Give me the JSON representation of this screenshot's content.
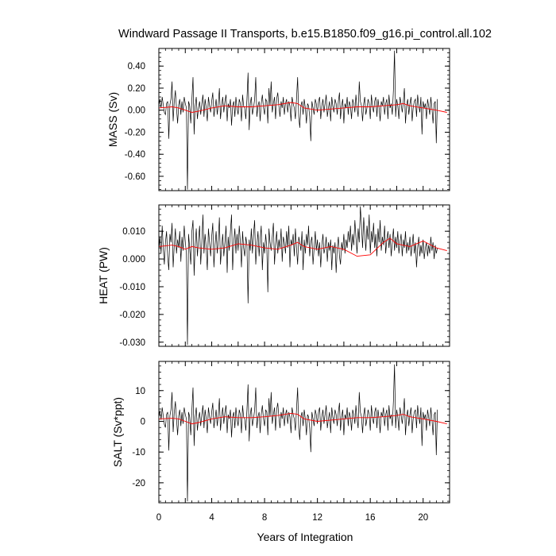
{
  "title": "Windward Passage II Transports, b.e15.B1850.f09_g16.pi_control.all.102",
  "xlabel": "Years of Integration",
  "x_ticks": [
    "0",
    "4",
    "8",
    "12",
    "16",
    "20"
  ],
  "colors": {
    "raw": "#000000",
    "smooth": "#ff0000"
  },
  "chart_data": [
    {
      "type": "line",
      "ylabel": "MASS (Sv)",
      "xlim": [
        0,
        22
      ],
      "ylim": [
        -0.73,
        0.56
      ],
      "y_ticks": [
        0.4,
        0.2,
        0.0,
        -0.2,
        -0.4,
        -0.6
      ],
      "y_tick_labels": [
        "0.40",
        "0.20",
        "0.00",
        "-0.20",
        "-0.40",
        "-0.60"
      ],
      "grid": false,
      "series": [
        {
          "role": "raw monthly",
          "x_start": 0,
          "x_step": 0.08333,
          "spiky": true,
          "y": [
            0.04,
            0.1,
            0.02,
            0.12,
            0.05,
            -0.02,
            -0.04,
            0.06,
            0.08,
            -0.26,
            0.05,
            0.1,
            0.26,
            -0.1,
            0.08,
            0.18,
            0.02,
            -0.12,
            0.05,
            0.1,
            -0.04,
            0.08,
            -0.02,
            0.12,
            0.06,
            0.02,
            -0.72,
            0.08,
            0.04,
            -0.12,
            0.1,
            0.3,
            -0.22,
            0.04,
            0.12,
            -0.08,
            0.02,
            0.08,
            -0.04,
            0.06,
            0.14,
            -0.06,
            0.1,
            0.02,
            -0.1,
            0.12,
            0.04,
            -0.02,
            0.08,
            0.16,
            -0.06,
            0.02,
            0.1,
            -0.04,
            0.06,
            0.2,
            -0.08,
            0.04,
            0.12,
            -0.02,
            0.08,
            0.14,
            -0.1,
            0.06,
            0.02,
            0.1,
            -0.14,
            0.04,
            0.08,
            -0.06,
            0.12,
            0.02,
            -0.04,
            0.1,
            0.06,
            -0.1,
            0.14,
            0.04,
            0.02,
            -0.08,
            0.1,
            0.34,
            -0.18,
            0.06,
            0.12,
            -0.04,
            0.02,
            0.1,
            0.3,
            -0.06,
            0.04,
            0.08,
            -0.1,
            0.06,
            0.14,
            0.02,
            -0.04,
            0.1,
            0.08,
            -0.12,
            0.2,
            0.04,
            0.26,
            -0.02,
            0.06,
            0.12,
            -0.08,
            0.1,
            0.16,
            0.04,
            -0.06,
            0.08,
            0.02,
            0.12,
            -0.04,
            0.06,
            0.1,
            -0.02,
            0.08,
            0.04,
            -0.1,
            0.12,
            0.06,
            0.02,
            -0.08,
            0.1,
            0.3,
            -0.06,
            -0.16,
            0.04,
            0.08,
            -0.04,
            0.1,
            0.02,
            -0.12,
            0.06,
            0.04,
            -0.06,
            -0.28,
            0.08,
            0.02,
            -0.04,
            0.1,
            0.06,
            -0.02,
            0.08,
            0.12,
            -0.08,
            0.04,
            0.1,
            -0.02,
            0.06,
            0.14,
            -0.06,
            0.02,
            0.08,
            -0.1,
            0.12,
            0.04,
            -0.02,
            0.1,
            0.06,
            -0.04,
            0.08,
            0.16,
            -0.08,
            0.04,
            0.1,
            -0.12,
            0.06,
            0.02,
            0.12,
            -0.04,
            0.08,
            0.04,
            -0.08,
            0.1,
            0.06,
            -0.02,
            0.14,
            0.02,
            -0.06,
            0.26,
            0.08,
            0.04,
            -0.1,
            0.06,
            0.12,
            -0.04,
            0.02,
            0.1,
            0.06,
            -0.08,
            0.14,
            0.04,
            -0.02,
            0.08,
            0.12,
            -0.06,
            0.1,
            0.02,
            -0.1,
            0.08,
            0.04,
            0.12,
            -0.04,
            0.06,
            0.1,
            -0.08,
            0.14,
            0.02,
            0.06,
            -0.04,
            0.18,
            0.54,
            -0.06,
            0.1,
            0.04,
            -0.08,
            0.12,
            0.06,
            -0.02,
            0.08,
            0.2,
            -0.12,
            0.04,
            0.1,
            -0.04,
            0.06,
            0.12,
            -0.1,
            0.02,
            0.08,
            0.1,
            -0.06,
            0.14,
            0.04,
            -0.02,
            0.12,
            -0.22,
            0.08,
            0.02,
            0.06,
            -0.08,
            0.1,
            0.04,
            -0.04,
            0.12,
            0.02,
            -0.12,
            0.06,
            0.08,
            -0.3,
            0.1
          ]
        },
        {
          "role": "smoothed",
          "x": [
            0.0,
            1.0,
            1.5,
            2.0,
            2.5,
            3.0,
            4.0,
            5.0,
            6.0,
            7.0,
            8.0,
            9.0,
            10.0,
            10.5,
            11.0,
            12.0,
            13.0,
            14.0,
            15.0,
            16.0,
            17.0,
            18.0,
            18.5,
            19.0,
            20.0,
            21.0,
            21.8
          ],
          "y": [
            0.02,
            0.03,
            0.02,
            0.0,
            -0.02,
            -0.01,
            0.02,
            0.04,
            0.03,
            0.03,
            0.04,
            0.05,
            0.07,
            0.06,
            0.02,
            0.0,
            0.01,
            0.02,
            0.03,
            0.03,
            0.04,
            0.05,
            0.06,
            0.04,
            0.02,
            0.0,
            -0.02
          ]
        }
      ]
    },
    {
      "type": "line",
      "ylabel": "HEAT (PW)",
      "xlim": [
        0,
        22
      ],
      "ylim": [
        -0.0315,
        0.0195
      ],
      "y_ticks": [
        0.01,
        0.0,
        -0.01,
        -0.02,
        -0.03
      ],
      "y_tick_labels": [
        "0.010",
        "0.000",
        "-0.010",
        "-0.020",
        "-0.030"
      ],
      "grid": false,
      "series": [
        {
          "role": "raw monthly",
          "x_start": 0,
          "x_step": 0.08333,
          "spiky": true,
          "y": [
            0.003,
            0.008,
            0.002,
            0.012,
            0.004,
            -0.002,
            0.006,
            0.01,
            0.001,
            -0.004,
            0.009,
            0.006,
            0.013,
            -0.003,
            0.005,
            0.011,
            0.002,
            0.007,
            0.004,
            0.01,
            -0.001,
            0.008,
            0.003,
            0.012,
            0.006,
            0.002,
            -0.031,
            0.009,
            0.004,
            -0.002,
            0.01,
            0.014,
            -0.006,
            0.005,
            0.011,
            0.001,
            0.007,
            0.012,
            -0.002,
            0.006,
            0.016,
            0.002,
            0.009,
            0.004,
            -0.004,
            0.011,
            0.006,
            0.001,
            0.008,
            0.013,
            -0.003,
            0.005,
            0.01,
            0.002,
            0.007,
            0.015,
            -0.002,
            0.004,
            0.009,
            0.001,
            0.006,
            0.012,
            -0.005,
            0.008,
            0.003,
            0.01,
            0.016,
            -0.004,
            0.006,
            0.011,
            0.002,
            0.009,
            0.003,
            0.012,
            0.006,
            -0.003,
            0.01,
            0.004,
            0.001,
            0.008,
            0.005,
            -0.016,
            0.007,
            0.003,
            0.011,
            0.002,
            0.009,
            0.014,
            -0.002,
            0.005,
            0.01,
            0.001,
            0.007,
            0.012,
            -0.004,
            0.006,
            0.002,
            0.009,
            0.004,
            -0.012,
            0.011,
            0.006,
            0.003,
            0.008,
            0.013,
            -0.002,
            0.005,
            0.01,
            0.002,
            0.007,
            0.004,
            0.011,
            -0.001,
            0.008,
            0.006,
            0.002,
            0.01,
            0.004,
            0.012,
            -0.003,
            0.007,
            0.005,
            0.009,
            0.001,
            0.011,
            0.004,
            -0.002,
            0.008,
            0.006,
            0.003,
            0.01,
            -0.004,
            0.007,
            0.002,
            0.009,
            0.005,
            0.012,
            0.001,
            0.006,
            0.008,
            -0.002,
            0.004,
            0.01,
            0.003,
            0.007,
            0.001,
            0.006,
            -0.003,
            0.005,
            0.009,
            0.002,
            0.004,
            0.008,
            -0.001,
            0.006,
            0.003,
            0.007,
            -0.004,
            0.005,
            0.002,
            0.006,
            -0.005,
            0.004,
            0.008,
            0.001,
            -0.002,
            0.006,
            0.003,
            0.009,
            0.002,
            0.007,
            0.004,
            0.01,
            0.006,
            0.012,
            0.003,
            0.009,
            0.005,
            0.014,
            0.008,
            0.002,
            0.011,
            0.006,
            0.019,
            0.012,
            0.004,
            0.015,
            0.009,
            0.003,
            0.012,
            0.007,
            0.016,
            0.002,
            0.01,
            0.006,
            0.013,
            0.004,
            0.009,
            0.001,
            0.011,
            0.006,
            0.014,
            0.003,
            0.008,
            0.005,
            0.012,
            0.002,
            0.007,
            0.01,
            0.004,
            0.009,
            0.001,
            0.006,
            0.011,
            0.003,
            0.008,
            0.004,
            0.01,
            0.002,
            0.006,
            0.009,
            0.001,
            0.007,
            0.004,
            0.01,
            0.002,
            0.006,
            0.003,
            0.008,
            0.001,
            0.005,
            0.009,
            0.002,
            0.006,
            -0.003,
            0.004,
            0.008,
            0.001,
            0.005,
            0.002,
            0.007,
            0.0,
            0.004,
            0.006,
            0.001,
            0.005,
            0.002,
            0.008,
            0.003,
            0.006,
            0.0,
            0.005,
            0.002,
            0.004
          ]
        },
        {
          "role": "smoothed",
          "x": [
            0.0,
            1.0,
            1.5,
            2.0,
            2.5,
            3.0,
            4.0,
            5.0,
            6.0,
            7.0,
            8.0,
            9.0,
            10.0,
            10.5,
            11.0,
            12.0,
            13.0,
            14.0,
            15.0,
            16.0,
            17.0,
            17.5,
            18.0,
            19.0,
            20.0,
            21.0,
            21.8
          ],
          "y": [
            0.0045,
            0.005,
            0.0045,
            0.0035,
            0.0045,
            0.004,
            0.0035,
            0.004,
            0.0055,
            0.005,
            0.004,
            0.0035,
            0.005,
            0.006,
            0.0045,
            0.0035,
            0.0045,
            0.0035,
            0.001,
            0.0015,
            0.006,
            0.0075,
            0.0055,
            0.0045,
            0.0065,
            0.004,
            0.003
          ]
        }
      ]
    },
    {
      "type": "line",
      "ylabel": "SALT (Sv*ppt)",
      "xlim": [
        0,
        22
      ],
      "ylim": [
        -26.5,
        19.5
      ],
      "y_ticks": [
        10,
        0,
        -10,
        -20
      ],
      "y_tick_labels": [
        "10",
        "0",
        "-10",
        "-20"
      ],
      "grid": false,
      "series": [
        {
          "role": "raw monthly",
          "x_start": 0,
          "x_step": 0.08333,
          "spiky": true,
          "y": [
            1.5,
            3.5,
            0.5,
            4.5,
            1.8,
            -1.0,
            -2.0,
            2.2,
            3.0,
            -9.5,
            1.8,
            3.8,
            9.5,
            -3.5,
            3.0,
            6.5,
            0.8,
            -4.5,
            1.8,
            3.8,
            -1.5,
            3.0,
            -0.8,
            4.5,
            2.2,
            0.8,
            -26.0,
            3.0,
            1.5,
            -4.5,
            3.8,
            11.0,
            -8.0,
            1.5,
            4.5,
            -3.0,
            0.8,
            3.0,
            -1.5,
            2.2,
            5.2,
            -2.2,
            3.8,
            0.8,
            -3.8,
            4.5,
            1.5,
            -0.8,
            3.0,
            6.0,
            -2.2,
            0.8,
            3.8,
            -1.5,
            2.2,
            7.5,
            -3.0,
            1.5,
            4.5,
            -0.8,
            3.0,
            5.2,
            -3.8,
            2.2,
            0.8,
            3.8,
            -5.2,
            1.5,
            3.0,
            -2.2,
            4.5,
            0.8,
            -1.5,
            3.8,
            2.2,
            -3.8,
            5.2,
            1.5,
            0.8,
            -3.0,
            3.8,
            12.0,
            -6.5,
            2.2,
            4.5,
            -1.5,
            0.8,
            3.8,
            11.0,
            -2.2,
            1.5,
            3.0,
            -3.8,
            2.2,
            5.2,
            0.8,
            -1.5,
            3.8,
            3.0,
            -4.5,
            7.5,
            1.5,
            9.5,
            -0.8,
            2.2,
            4.5,
            -3.0,
            3.8,
            6.0,
            1.5,
            -2.2,
            3.0,
            0.8,
            4.5,
            -1.5,
            2.2,
            3.8,
            -0.8,
            3.0,
            1.5,
            -3.8,
            4.5,
            2.2,
            0.8,
            -3.0,
            3.8,
            11.0,
            -2.2,
            -6.0,
            1.5,
            3.0,
            -1.5,
            3.8,
            0.8,
            -4.5,
            2.2,
            1.5,
            -2.2,
            -10.0,
            3.0,
            0.8,
            -1.5,
            3.8,
            2.2,
            -0.8,
            3.0,
            4.5,
            -3.0,
            1.5,
            3.8,
            -0.8,
            2.2,
            5.2,
            -2.2,
            0.8,
            3.0,
            -3.8,
            4.5,
            1.5,
            -0.8,
            3.8,
            2.2,
            -1.5,
            3.0,
            6.0,
            -3.0,
            1.5,
            3.8,
            -4.5,
            2.2,
            0.8,
            4.5,
            -1.5,
            3.0,
            1.5,
            -3.0,
            3.8,
            2.2,
            -0.8,
            5.2,
            0.8,
            -2.2,
            9.5,
            3.0,
            1.5,
            -3.8,
            2.2,
            4.5,
            -1.5,
            0.8,
            3.8,
            2.2,
            -3.0,
            5.2,
            1.5,
            -0.8,
            3.0,
            4.5,
            -2.2,
            3.8,
            0.8,
            -3.8,
            3.0,
            1.5,
            4.5,
            -1.5,
            2.2,
            3.8,
            -3.0,
            5.2,
            0.8,
            2.2,
            -1.5,
            6.5,
            18.5,
            -2.2,
            3.8,
            1.5,
            -3.0,
            4.5,
            2.2,
            -0.8,
            3.0,
            7.5,
            -4.5,
            1.5,
            3.8,
            -1.5,
            2.2,
            4.5,
            -3.8,
            0.8,
            3.0,
            3.8,
            -2.2,
            5.2,
            1.5,
            -0.8,
            4.5,
            -8.0,
            3.0,
            0.8,
            2.2,
            -3.0,
            3.8,
            1.5,
            -1.5,
            4.5,
            0.8,
            -4.5,
            2.2,
            3.0,
            -11.0,
            3.8
          ]
        },
        {
          "role": "smoothed",
          "x": [
            0.0,
            1.0,
            1.5,
            2.0,
            2.5,
            3.0,
            4.0,
            5.0,
            6.0,
            7.0,
            8.0,
            9.0,
            10.0,
            10.5,
            11.0,
            12.0,
            13.0,
            14.0,
            15.0,
            16.0,
            17.0,
            18.0,
            18.5,
            19.0,
            20.0,
            21.0,
            21.8
          ],
          "y": [
            0.8,
            1.0,
            0.8,
            0.0,
            -0.8,
            -0.4,
            0.8,
            1.5,
            1.2,
            1.2,
            1.5,
            1.9,
            2.6,
            2.3,
            0.8,
            0.0,
            0.4,
            0.8,
            1.2,
            1.2,
            1.5,
            1.9,
            2.3,
            1.5,
            0.8,
            0.0,
            -0.8
          ]
        }
      ]
    }
  ]
}
